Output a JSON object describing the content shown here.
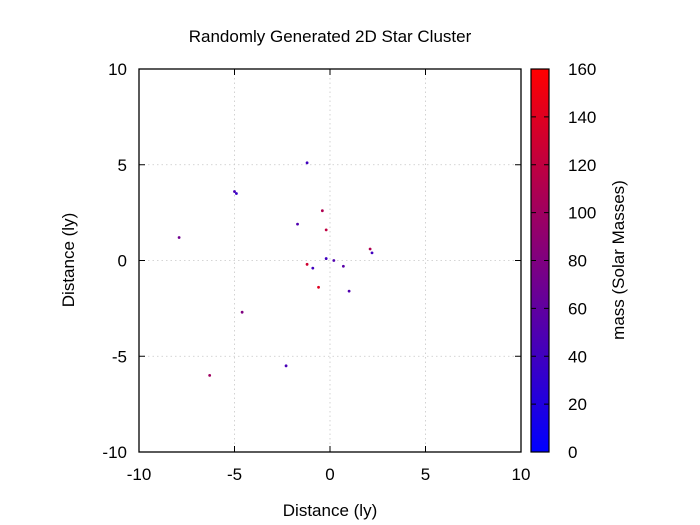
{
  "chart_data": {
    "type": "scatter",
    "title": "Randomly Generated 2D Star Cluster",
    "xlabel": "Distance (ly)",
    "ylabel": "Distance (ly)",
    "xlim": [
      -10,
      10
    ],
    "ylim": [
      -10,
      10
    ],
    "xticks": [
      -10,
      -5,
      0,
      5,
      10
    ],
    "yticks": [
      -10,
      -5,
      0,
      5,
      10
    ],
    "grid": true,
    "colorbar": {
      "label": "mass (Solar Masses)",
      "range": [
        0,
        160
      ],
      "ticks": [
        0,
        20,
        40,
        60,
        80,
        100,
        120,
        140,
        160
      ],
      "color_low": "#0000ff",
      "color_high": "#ff0000"
    },
    "points": [
      {
        "x": -1.2,
        "y": 5.1,
        "mass": 40
      },
      {
        "x": -5.0,
        "y": 3.6,
        "mass": 45
      },
      {
        "x": -4.9,
        "y": 3.5,
        "mass": 35
      },
      {
        "x": -7.9,
        "y": 1.2,
        "mass": 70
      },
      {
        "x": -1.7,
        "y": 1.9,
        "mass": 50
      },
      {
        "x": -0.4,
        "y": 2.6,
        "mass": 110
      },
      {
        "x": -0.2,
        "y": 1.6,
        "mass": 120
      },
      {
        "x": 2.1,
        "y": 0.6,
        "mass": 110
      },
      {
        "x": 2.2,
        "y": 0.4,
        "mass": 40
      },
      {
        "x": -0.2,
        "y": 0.1,
        "mass": 40
      },
      {
        "x": 0.2,
        "y": 0.0,
        "mass": 50
      },
      {
        "x": 0.7,
        "y": -0.3,
        "mass": 55
      },
      {
        "x": -1.2,
        "y": -0.2,
        "mass": 130
      },
      {
        "x": -0.9,
        "y": -0.4,
        "mass": 40
      },
      {
        "x": -0.6,
        "y": -1.4,
        "mass": 140
      },
      {
        "x": 1.0,
        "y": -1.6,
        "mass": 50
      },
      {
        "x": -4.6,
        "y": -2.7,
        "mass": 80
      },
      {
        "x": -2.3,
        "y": -5.5,
        "mass": 45
      },
      {
        "x": -6.3,
        "y": -6.0,
        "mass": 100
      }
    ]
  }
}
